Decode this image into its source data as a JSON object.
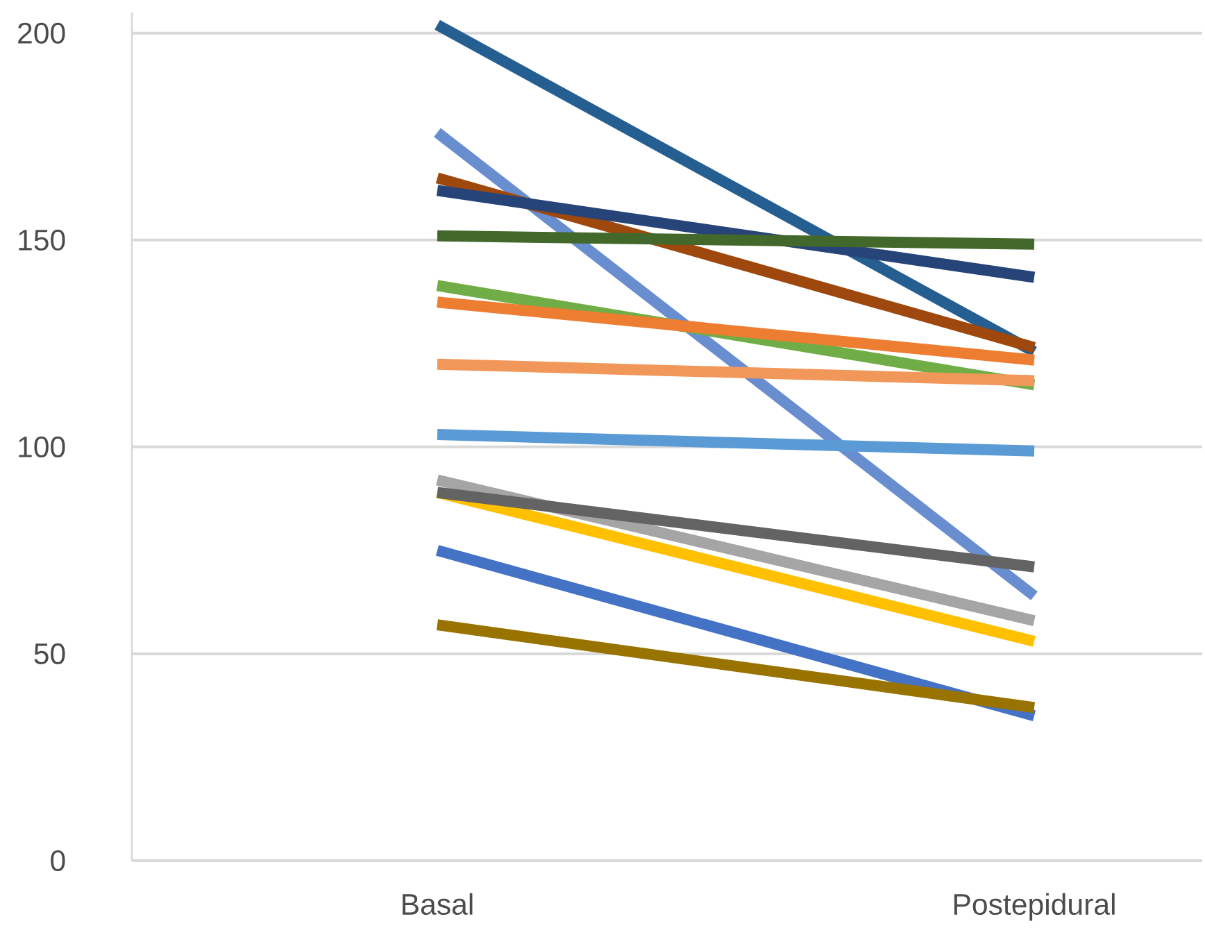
{
  "chart_data": {
    "type": "line",
    "categories": [
      "Basal",
      "Postepidural"
    ],
    "series": [
      {
        "color": "#255e91",
        "values": [
          202,
          123
        ]
      },
      {
        "color": "#698ed0",
        "values": [
          176,
          64
        ]
      },
      {
        "color": "#9e480e",
        "values": [
          165,
          124
        ]
      },
      {
        "color": "#264478",
        "values": [
          162,
          141
        ]
      },
      {
        "color": "#43682b",
        "values": [
          151,
          149
        ]
      },
      {
        "color": "#70ad47",
        "values": [
          139,
          115
        ]
      },
      {
        "color": "#ed7d31",
        "values": [
          135,
          121
        ]
      },
      {
        "color": "#f1975a",
        "values": [
          120,
          116
        ]
      },
      {
        "color": "#5b9bd5",
        "values": [
          103,
          99
        ]
      },
      {
        "color": "#a5a5a5",
        "values": [
          92,
          58
        ]
      },
      {
        "color": "#ffc000",
        "values": [
          89,
          53
        ]
      },
      {
        "color": "#636363",
        "values": [
          89,
          71
        ]
      },
      {
        "color": "#4472c4",
        "values": [
          75,
          35
        ]
      },
      {
        "color": "#997300",
        "values": [
          57,
          37
        ]
      }
    ],
    "ylim": [
      0,
      205
    ],
    "yticks": [
      0,
      50,
      100,
      150,
      200
    ],
    "grid": "y",
    "marker": "none",
    "line_style": "solid"
  }
}
